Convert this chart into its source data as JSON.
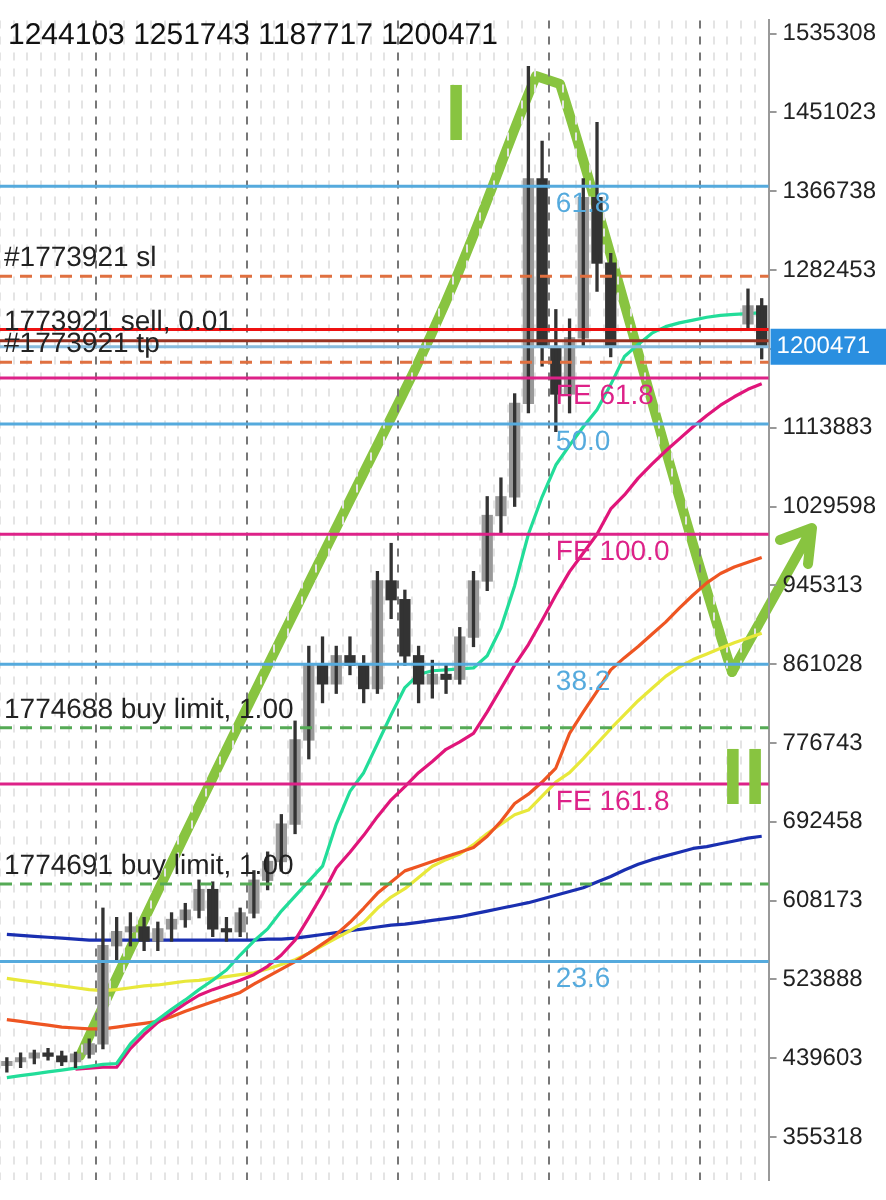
{
  "chart_data": {
    "type": "candlestick",
    "color": "#333333",
    "colors": [
      "#999999",
      "#999999",
      "#999999",
      "#333333",
      "#333333",
      "#999999",
      "#999999",
      "#999999",
      "#999999",
      "#999999",
      "#333333",
      "#999999",
      "#999999",
      "#999999",
      "#999999",
      "#333333",
      "#333333",
      "#999999",
      "#999999",
      "#999999",
      "#999999",
      "#999999",
      "#999999",
      "#333333",
      "#999999",
      "#333333",
      "#333333",
      "#999999",
      "#333333",
      "#333333",
      "#333333",
      "#999999",
      "#333333",
      "#999999",
      "#999999",
      "#999999",
      "#999999",
      "#999999",
      "#999999",
      "#333333",
      "#333333",
      "#999999",
      "#999999",
      "#333333",
      "#333333",
      null,
      null,
      null,
      null,
      null,
      null,
      null,
      null,
      null,
      "#999999",
      "#333333"
    ],
    "categories": [
      null,
      null,
      null,
      null,
      null,
      null,
      null,
      null,
      null,
      null,
      null,
      null,
      null,
      null,
      null,
      null,
      null,
      null,
      null,
      null,
      null,
      null,
      null,
      null,
      null,
      null,
      null,
      null,
      null,
      null,
      null,
      null,
      null,
      null,
      null,
      null,
      null,
      null,
      null,
      null,
      null,
      null,
      null,
      null,
      null,
      null,
      null,
      null,
      null,
      null,
      null,
      null,
      null,
      null,
      null,
      null
    ],
    "ohlc": [
      [
        432000,
        440000,
        425000,
        436000
      ],
      [
        436000,
        445000,
        430000,
        440000
      ],
      [
        440000,
        448000,
        434000,
        445000
      ],
      [
        445000,
        450000,
        438000,
        442000
      ],
      [
        442000,
        447000,
        432000,
        436000
      ],
      [
        436000,
        446000,
        430000,
        444000
      ],
      [
        444000,
        460000,
        440000,
        455000
      ],
      [
        455000,
        600000,
        450000,
        560000
      ],
      [
        560000,
        590000,
        545000,
        575000
      ],
      [
        575000,
        595000,
        560000,
        580000
      ],
      [
        580000,
        590000,
        555000,
        565000
      ],
      [
        565000,
        585000,
        555000,
        578000
      ],
      [
        578000,
        595000,
        565000,
        588000
      ],
      [
        588000,
        605000,
        580000,
        598000
      ],
      [
        598000,
        630000,
        590000,
        620000
      ],
      [
        620000,
        628000,
        570000,
        578000
      ],
      [
        578000,
        590000,
        565000,
        575000
      ],
      [
        575000,
        600000,
        570000,
        595000
      ],
      [
        595000,
        640000,
        590000,
        630000
      ],
      [
        630000,
        660000,
        620000,
        650000
      ],
      [
        650000,
        700000,
        640000,
        690000
      ],
      [
        690000,
        800000,
        680000,
        780000
      ],
      [
        780000,
        880000,
        760000,
        860000
      ],
      [
        860000,
        890000,
        820000,
        840000
      ],
      [
        840000,
        880000,
        830000,
        870000
      ],
      [
        870000,
        890000,
        850000,
        860000
      ],
      [
        860000,
        870000,
        820000,
        835000
      ],
      [
        835000,
        960000,
        830000,
        950000
      ],
      [
        950000,
        990000,
        910000,
        930000
      ],
      [
        930000,
        940000,
        860000,
        870000
      ],
      [
        870000,
        880000,
        820000,
        840000
      ],
      [
        840000,
        865000,
        825000,
        850000
      ],
      [
        850000,
        860000,
        830000,
        845000
      ],
      [
        845000,
        900000,
        840000,
        890000
      ],
      [
        890000,
        960000,
        880000,
        950000
      ],
      [
        950000,
        1040000,
        940000,
        1020000
      ],
      [
        1020000,
        1060000,
        1000000,
        1040000
      ],
      [
        1040000,
        1150000,
        1030000,
        1140000
      ],
      [
        1140000,
        1500000,
        1130000,
        1380000
      ],
      [
        1380000,
        1420000,
        1180000,
        1200000
      ],
      [
        1200000,
        1240000,
        1110000,
        1150000
      ],
      [
        1150000,
        1230000,
        1130000,
        1210000
      ],
      [
        1210000,
        1380000,
        1200000,
        1360000
      ],
      [
        1360000,
        1440000,
        1260000,
        1290000
      ],
      [
        1290000,
        1300000,
        1190000,
        1200000
      ],
      null,
      null,
      null,
      null,
      null,
      null,
      null,
      null,
      null,
      [
        1225000,
        1262000,
        1220000,
        1244103
      ],
      [
        1244103,
        1251743,
        1187717,
        1200471
      ]
    ],
    "series": [
      {
        "type": "line",
        "color": "#22dd99",
        "values": [
          419000,
          421000,
          423000,
          425000,
          427000,
          429000,
          431000,
          433000,
          434000,
          455000,
          470000,
          481000,
          492000,
          502000,
          513000,
          523000,
          534000,
          550000,
          565000,
          578000,
          597000,
          613000,
          629000,
          645000,
          690000,
          725000,
          745000,
          776000,
          807000,
          836000,
          850000,
          854000,
          855000,
          856000,
          857000,
          870000,
          900000,
          945000,
          1000000,
          1040000,
          1074000,
          1095000,
          1115000,
          1133000,
          1160000,
          1190000,
          1203000,
          1215000,
          1222000,
          1226000,
          1229000,
          1232000,
          1234000,
          1235000,
          1236000,
          1237000
        ]
      },
      {
        "type": "line",
        "color": "#e0157a",
        "values": [
          null,
          null,
          null,
          null,
          null,
          428000,
          429000,
          430000,
          430000,
          450000,
          465000,
          478000,
          488000,
          498000,
          507000,
          513000,
          518000,
          523000,
          529000,
          538000,
          550000,
          566000,
          590000,
          615000,
          643000,
          660000,
          678000,
          698000,
          716000,
          730000,
          745000,
          757000,
          770000,
          778000,
          787000,
          810000,
          835000,
          860000,
          882000,
          908000,
          935000,
          960000,
          980000,
          1000000,
          1027000,
          1042000,
          1060000,
          1075000,
          1089000,
          1102000,
          1115000,
          1127000,
          1138000,
          1147000,
          1155000,
          1161000
        ]
      },
      {
        "type": "line",
        "color": "#ee5522",
        "values": [
          481000,
          479000,
          477000,
          475000,
          473000,
          472000,
          471000,
          471000,
          473000,
          475000,
          477000,
          479000,
          484000,
          490000,
          495000,
          500000,
          505000,
          510000,
          519000,
          527000,
          535000,
          543000,
          552000,
          562000,
          572000,
          585000,
          600000,
          616000,
          628000,
          640000,
          645000,
          650000,
          655000,
          660000,
          665000,
          677000,
          693000,
          712000,
          722000,
          735000,
          750000,
          787000,
          810000,
          832000,
          855000,
          868000,
          880000,
          893000,
          906000,
          921000,
          935000,
          948000,
          958000,
          965000,
          970000,
          975000
        ]
      },
      {
        "type": "line",
        "color": "#e8e83a",
        "values": [
          525000,
          523000,
          521000,
          519000,
          517000,
          515000,
          513000,
          512000,
          513000,
          515000,
          517000,
          518000,
          520000,
          522000,
          523000,
          525000,
          527000,
          529000,
          531000,
          535000,
          540000,
          545000,
          552000,
          560000,
          568000,
          576000,
          585000,
          600000,
          612000,
          621000,
          633000,
          645000,
          652000,
          658000,
          668000,
          680000,
          690000,
          700000,
          705000,
          720000,
          735000,
          745000,
          760000,
          776000,
          792000,
          807000,
          822000,
          835000,
          848000,
          858000,
          866000,
          872000,
          878000,
          884000,
          889000,
          894000
        ]
      },
      {
        "type": "line",
        "color": "#1a2fb0",
        "values": [
          572000,
          571000,
          570000,
          569000,
          568000,
          567000,
          566000,
          566000,
          566000,
          566000,
          566000,
          566000,
          566000,
          566000,
          566000,
          566000,
          566000,
          566000,
          566000,
          567000,
          567000,
          568000,
          570000,
          572000,
          574000,
          576000,
          578000,
          580000,
          582000,
          583000,
          585000,
          587000,
          589000,
          591000,
          594000,
          597000,
          600000,
          603000,
          606000,
          610000,
          614000,
          618000,
          622000,
          628000,
          634000,
          641000,
          647000,
          652000,
          656000,
          660000,
          664000,
          666000,
          669000,
          672000,
          675000,
          677000
        ]
      }
    ],
    "ylim": [
      309866,
      1549466
    ],
    "yticks": [
      355318,
      439603,
      523888,
      608173,
      692458,
      776743,
      861028,
      945313,
      1029598,
      1113883,
      {
        "value": 1198168,
        "label": null
      },
      1282453,
      1366738,
      1451023,
      1535308
    ],
    "tick_labels": "y",
    "grid": "x",
    "legend": false,
    "marker": "none",
    "ref_lines": [
      {
        "axis": "y",
        "value": 1372000,
        "label": null,
        "color": "#55aadd",
        "line_style": "solid"
      },
      {
        "axis": "y",
        "value": 1118000,
        "label": null,
        "color": "#55aadd",
        "line_style": "solid"
      },
      {
        "axis": "y",
        "value": 861000,
        "label": null,
        "color": "#55aadd",
        "line_style": "solid"
      },
      {
        "axis": "y",
        "value": 543000,
        "label": null,
        "color": "#55aadd",
        "line_style": "solid"
      },
      {
        "axis": "y",
        "value": 1167000,
        "label": null,
        "color": "#dd2288",
        "line_style": "solid"
      },
      {
        "axis": "y",
        "value": 1000000,
        "label": null,
        "color": "#dd2288",
        "line_style": "solid"
      },
      {
        "axis": "y",
        "value": 733000,
        "label": null,
        "color": "#dd2288",
        "line_style": "solid"
      },
      {
        "axis": "y",
        "value": 1276000,
        "label": "#1773921 sl",
        "color": "#e07040",
        "line_style": "dashed"
      },
      {
        "axis": "y",
        "value": 1207000,
        "label": "1773921 sell, 0.01",
        "color": "#993322",
        "line_style": "solid"
      },
      {
        "axis": "y",
        "value": 1184000,
        "label": "#1773921 tp",
        "color": "#e07040",
        "line_style": "dashed"
      },
      {
        "axis": "y",
        "value": 793000,
        "label": "1774688 buy limit, 1.00",
        "color": "#55aa55",
        "line_style": "dashed"
      },
      {
        "axis": "y",
        "value": 626000,
        "label": "1774691 buy limit, 1.00",
        "color": "#55aa55",
        "line_style": "dashed"
      },
      {
        "axis": "y",
        "value": 1200471,
        "label": null,
        "color": "#88bbdd",
        "line_style": "solid"
      },
      {
        "axis": "y",
        "value": 1219000,
        "label": null,
        "color": "#ee1111",
        "line_style": "solid"
      }
    ],
    "annotations": [
      "1244103 1251743 1187717 1200471",
      "I",
      "II",
      "61.8",
      "50.0",
      "38.2",
      "23.6",
      "FE 61.8",
      "FE 100.0",
      "FE 161.8",
      "1200471"
    ]
  }
}
